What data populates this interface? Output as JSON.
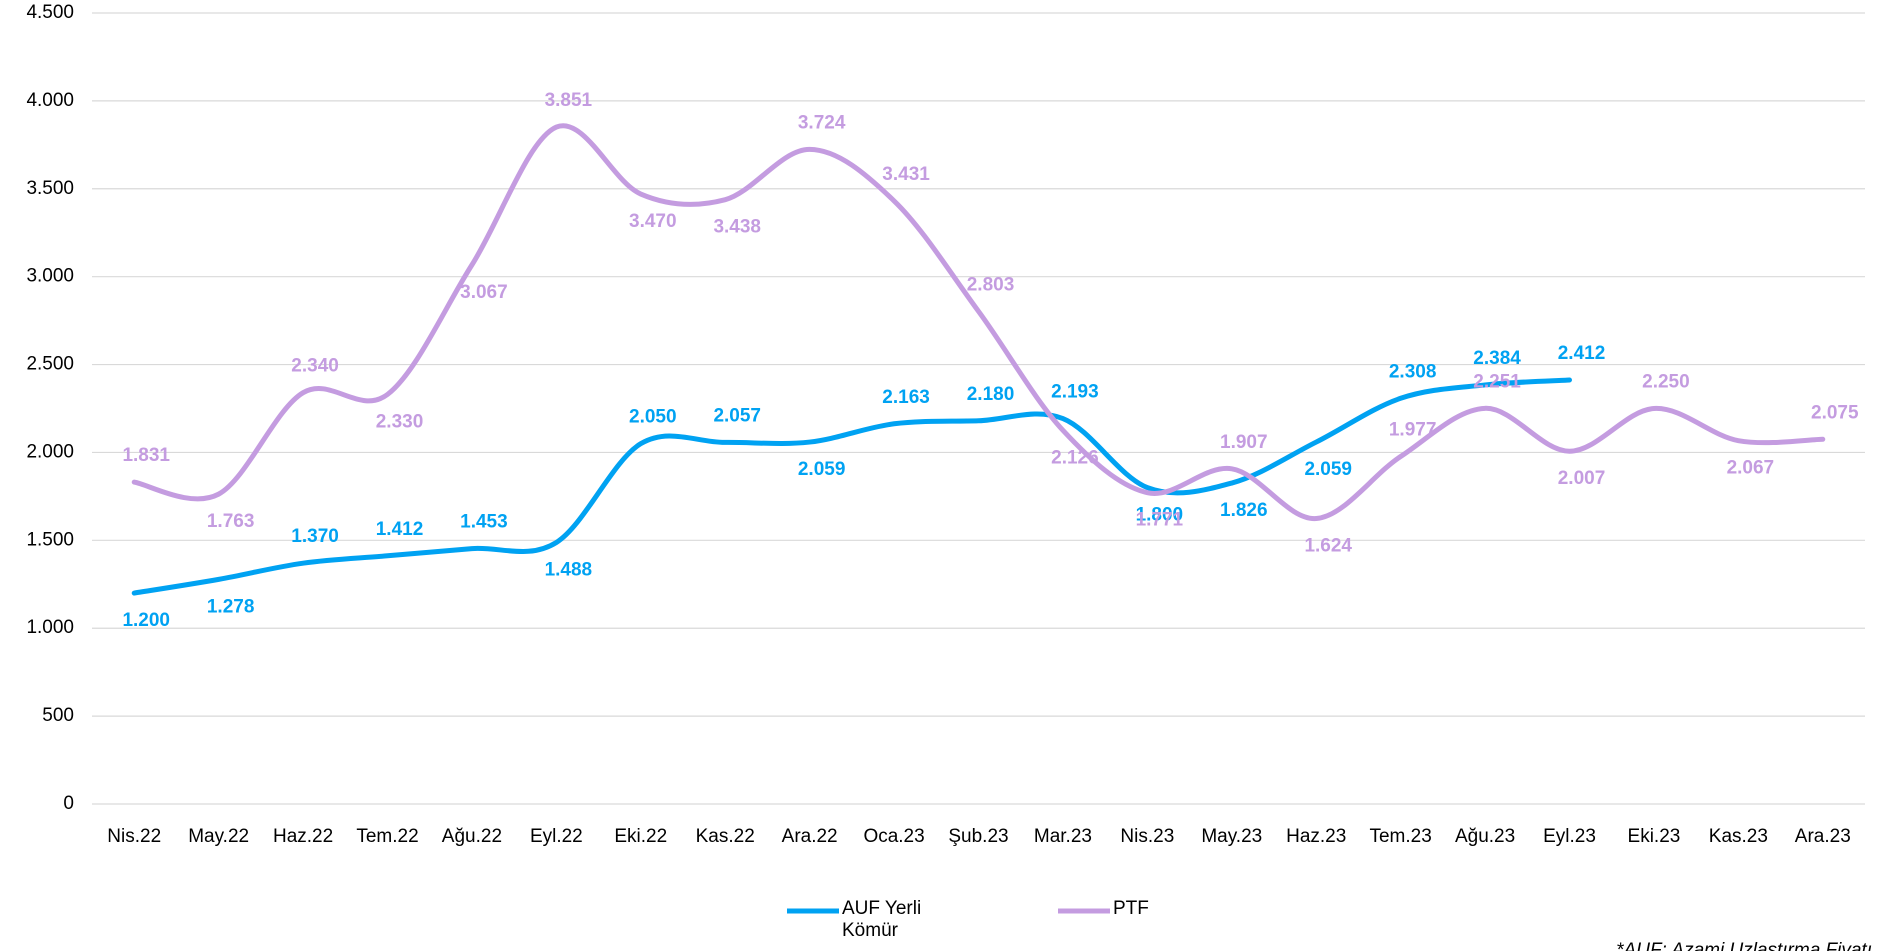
{
  "chart_data": {
    "type": "line",
    "categories": [
      "Nis.22",
      "May.22",
      "Haz.22",
      "Tem.22",
      "Ağu.22",
      "Eyl.22",
      "Eki.22",
      "Kas.22",
      "Ara.22",
      "Oca.23",
      "Şub.23",
      "Mar.23",
      "Nis.23",
      "May.23",
      "Haz.23",
      "Tem.23",
      "Ağu.23",
      "Eyl.23",
      "Eki.23",
      "Kas.23",
      "Ara.23"
    ],
    "series": [
      {
        "name": "AUF Yerli Kömür",
        "color": "#00a2f2",
        "values": [
          1200,
          1278,
          1370,
          1412,
          1453,
          1488,
          2050,
          2057,
          2059,
          2163,
          2180,
          2193,
          1800,
          1826,
          2059,
          2308,
          2384,
          2412,
          null,
          null,
          null
        ],
        "value_labels": [
          "1.200",
          "1.278",
          "1.370",
          "1.412",
          "1.453",
          "1.488",
          "2.050",
          "2.057",
          "2.059",
          "2.163",
          "2.180",
          "2.193",
          "1.800",
          "1.826",
          "2.059",
          "2.308",
          "2.384",
          "2.412",
          null,
          null,
          null
        ]
      },
      {
        "name": "PTF",
        "color": "#c49ce0",
        "values": [
          1831,
          1763,
          2340,
          2330,
          3067,
          3851,
          3470,
          3438,
          3724,
          3431,
          2803,
          2126,
          1771,
          1907,
          1624,
          1977,
          2251,
          2007,
          2250,
          2067,
          2075
        ],
        "value_labels": [
          "1.831",
          "1.763",
          "2.340",
          "2.330",
          "3.067",
          "3.851",
          "3.470",
          "3.438",
          "3.724",
          "3.431",
          "2.803",
          "2.126",
          "1.771",
          "1.907",
          "1.624",
          "1.977",
          "2.251",
          "2.007",
          "2.250",
          "2.067",
          "2.075"
        ]
      }
    ],
    "ylim": [
      0,
      4500
    ],
    "yticks": [
      0,
      500,
      {
        "value": 1000,
        "label": "1.000"
      },
      {
        "value": 1500,
        "label": "1.500"
      },
      {
        "value": 2000,
        "label": "2.000"
      },
      {
        "value": 2500,
        "label": "2.500"
      },
      {
        "value": 3000,
        "label": "3.000"
      },
      {
        "value": 3500,
        "label": "3.500"
      },
      {
        "value": 4000,
        "label": "4.000"
      },
      {
        "value": 4500,
        "label": "4.500"
      }
    ],
    "grid": true,
    "legend": "bottom",
    "annotations": [
      "*AUF: Azami Uzlaştırma Fiyatı"
    ]
  }
}
